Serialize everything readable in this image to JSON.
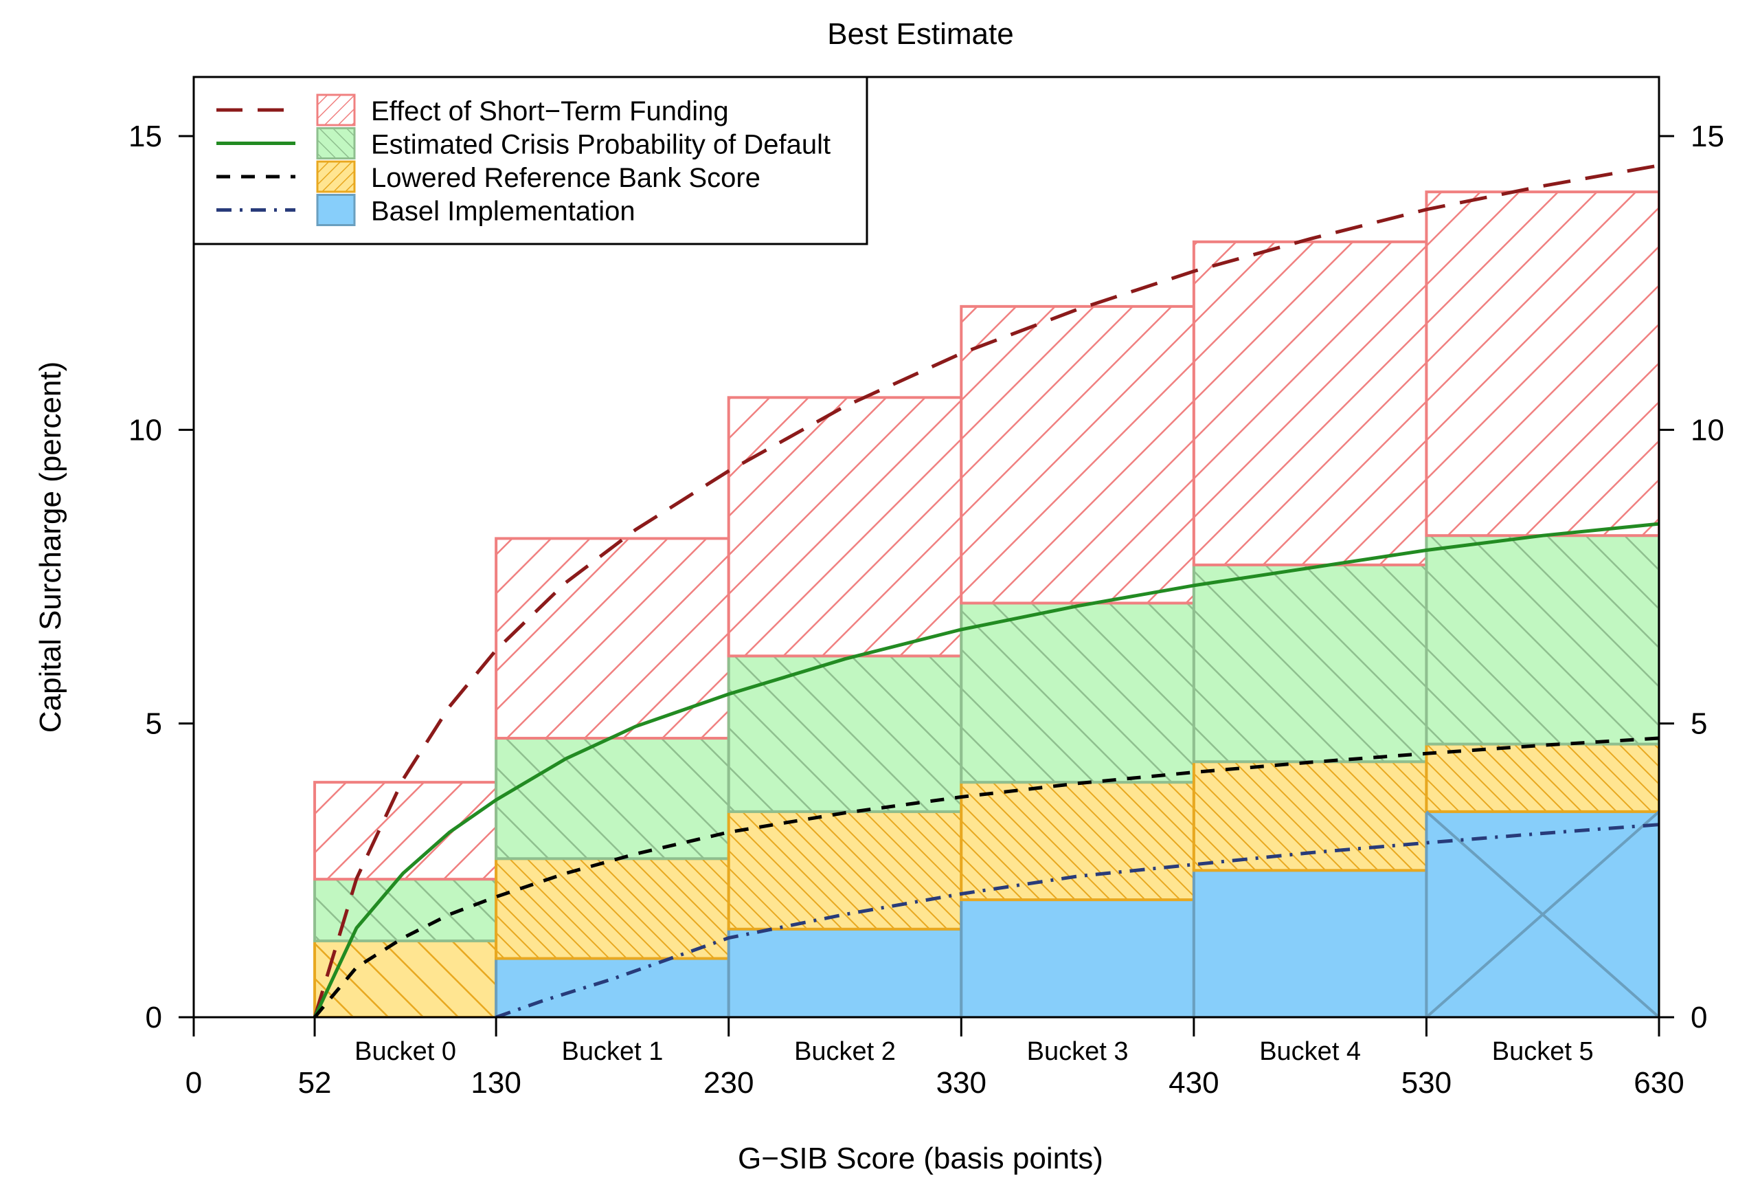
{
  "chart_data": {
    "type": "bar",
    "title": "Best Estimate",
    "xlabel": "G−SIB Score (basis points)",
    "ylabel": "Capital Surcharge (percent)",
    "xlim": [
      0,
      630
    ],
    "ylim": [
      0,
      15
    ],
    "x_ticks": [
      0,
      52,
      130,
      230,
      330,
      430,
      530,
      630
    ],
    "x_tick_labels": [
      "0",
      "52",
      "130",
      "230",
      "330",
      "430",
      "530",
      "630"
    ],
    "y_ticks": [
      0,
      5,
      10,
      15
    ],
    "y_tick_labels": [
      "0",
      "5",
      "10",
      "15"
    ],
    "legend_position": "top-left",
    "buckets": [
      {
        "label": "Bucket 0",
        "start": 52,
        "end": 130
      },
      {
        "label": "Bucket 1",
        "start": 130,
        "end": 230
      },
      {
        "label": "Bucket 2",
        "start": 230,
        "end": 330
      },
      {
        "label": "Bucket 3",
        "start": 330,
        "end": 430
      },
      {
        "label": "Bucket 4",
        "start": 430,
        "end": 530
      },
      {
        "label": "Bucket 5",
        "start": 530,
        "end": 630
      }
    ],
    "series": [
      {
        "name": "Basel Implementation",
        "kind": "bar",
        "values": [
          0,
          1.0,
          1.5,
          2.0,
          2.5,
          3.5
        ],
        "fill": "#87CEFA",
        "stroke": "#6A9FBF",
        "pattern": "solid"
      },
      {
        "name": "Lowered Reference Bank Score",
        "kind": "bar",
        "values": [
          1.3,
          2.7,
          3.5,
          4.0,
          4.35,
          4.65
        ],
        "fill": "#FFE591",
        "stroke": "#E8A820",
        "pattern": "hatch"
      },
      {
        "name": "Estimated Crisis Probability of Default",
        "kind": "bar",
        "values": [
          2.35,
          4.75,
          6.15,
          7.05,
          7.7,
          8.2
        ],
        "fill": "#C1F7C1",
        "stroke": "#8FBF8F",
        "pattern": "hatch"
      },
      {
        "name": "Effect of Short−Term Funding",
        "kind": "bar",
        "values": [
          4.0,
          8.15,
          10.55,
          12.1,
          13.2,
          14.05
        ],
        "fill": "#FFFFFF",
        "stroke": "#F08080",
        "pattern": "hatch"
      }
    ],
    "curves": [
      {
        "name": "Effect of Short−Term Funding",
        "style": "long-dash",
        "color": "#8B1A1A",
        "x": [
          52,
          70,
          90,
          110,
          130,
          160,
          190,
          230,
          280,
          330,
          380,
          430,
          480,
          530,
          580,
          630
        ],
        "y": [
          0,
          2.36,
          4.05,
          5.29,
          6.25,
          7.4,
          8.3,
          9.3,
          10.4,
          11.3,
          12.05,
          12.7,
          13.25,
          13.75,
          14.15,
          14.5
        ]
      },
      {
        "name": "Estimated Crisis Probability of Default",
        "style": "solid",
        "color": "#228B22",
        "x": [
          52,
          70,
          90,
          110,
          130,
          160,
          190,
          230,
          280,
          330,
          380,
          430,
          480,
          530,
          580,
          630
        ],
        "y": [
          0,
          1.52,
          2.45,
          3.15,
          3.7,
          4.4,
          4.95,
          5.5,
          6.1,
          6.6,
          7.0,
          7.35,
          7.65,
          7.95,
          8.2,
          8.4
        ]
      },
      {
        "name": "Lowered Reference Bank Score",
        "style": "short-dash",
        "color": "#000000",
        "x": [
          52,
          70,
          90,
          110,
          130,
          160,
          190,
          230,
          280,
          330,
          380,
          430,
          480,
          530,
          580,
          630
        ],
        "y": [
          0,
          0.85,
          1.35,
          1.75,
          2.05,
          2.45,
          2.78,
          3.15,
          3.48,
          3.75,
          3.98,
          4.17,
          4.34,
          4.49,
          4.63,
          4.75
        ]
      },
      {
        "name": "Basel Implementation",
        "style": "dash-dot",
        "color": "#283B7A",
        "x": [
          130,
          150,
          180,
          230,
          280,
          330,
          380,
          430,
          480,
          530,
          580,
          630
        ],
        "y": [
          0,
          0.28,
          0.65,
          1.35,
          1.75,
          2.1,
          2.4,
          2.6,
          2.8,
          2.97,
          3.13,
          3.28
        ]
      }
    ],
    "legend": [
      {
        "label": "Effect of Short−Term Funding",
        "line_style": "long-dash",
        "line_color": "#8B1A1A",
        "fill": "#FFFFFF",
        "stroke": "#F08080",
        "hatch": "back"
      },
      {
        "label": "Estimated Crisis Probability of Default",
        "line_style": "solid",
        "line_color": "#228B22",
        "fill": "#C1F7C1",
        "stroke": "#8FBF8F",
        "hatch": "fwd"
      },
      {
        "label": "Lowered Reference Bank Score",
        "line_style": "short-dash",
        "line_color": "#000000",
        "fill": "#FFE591",
        "stroke": "#E8A820",
        "hatch": "back"
      },
      {
        "label": "Basel Implementation",
        "line_style": "dash-dot",
        "line_color": "#283B7A",
        "fill": "#87CEFA",
        "stroke": "#6A9FBF",
        "hatch": "none"
      }
    ]
  }
}
